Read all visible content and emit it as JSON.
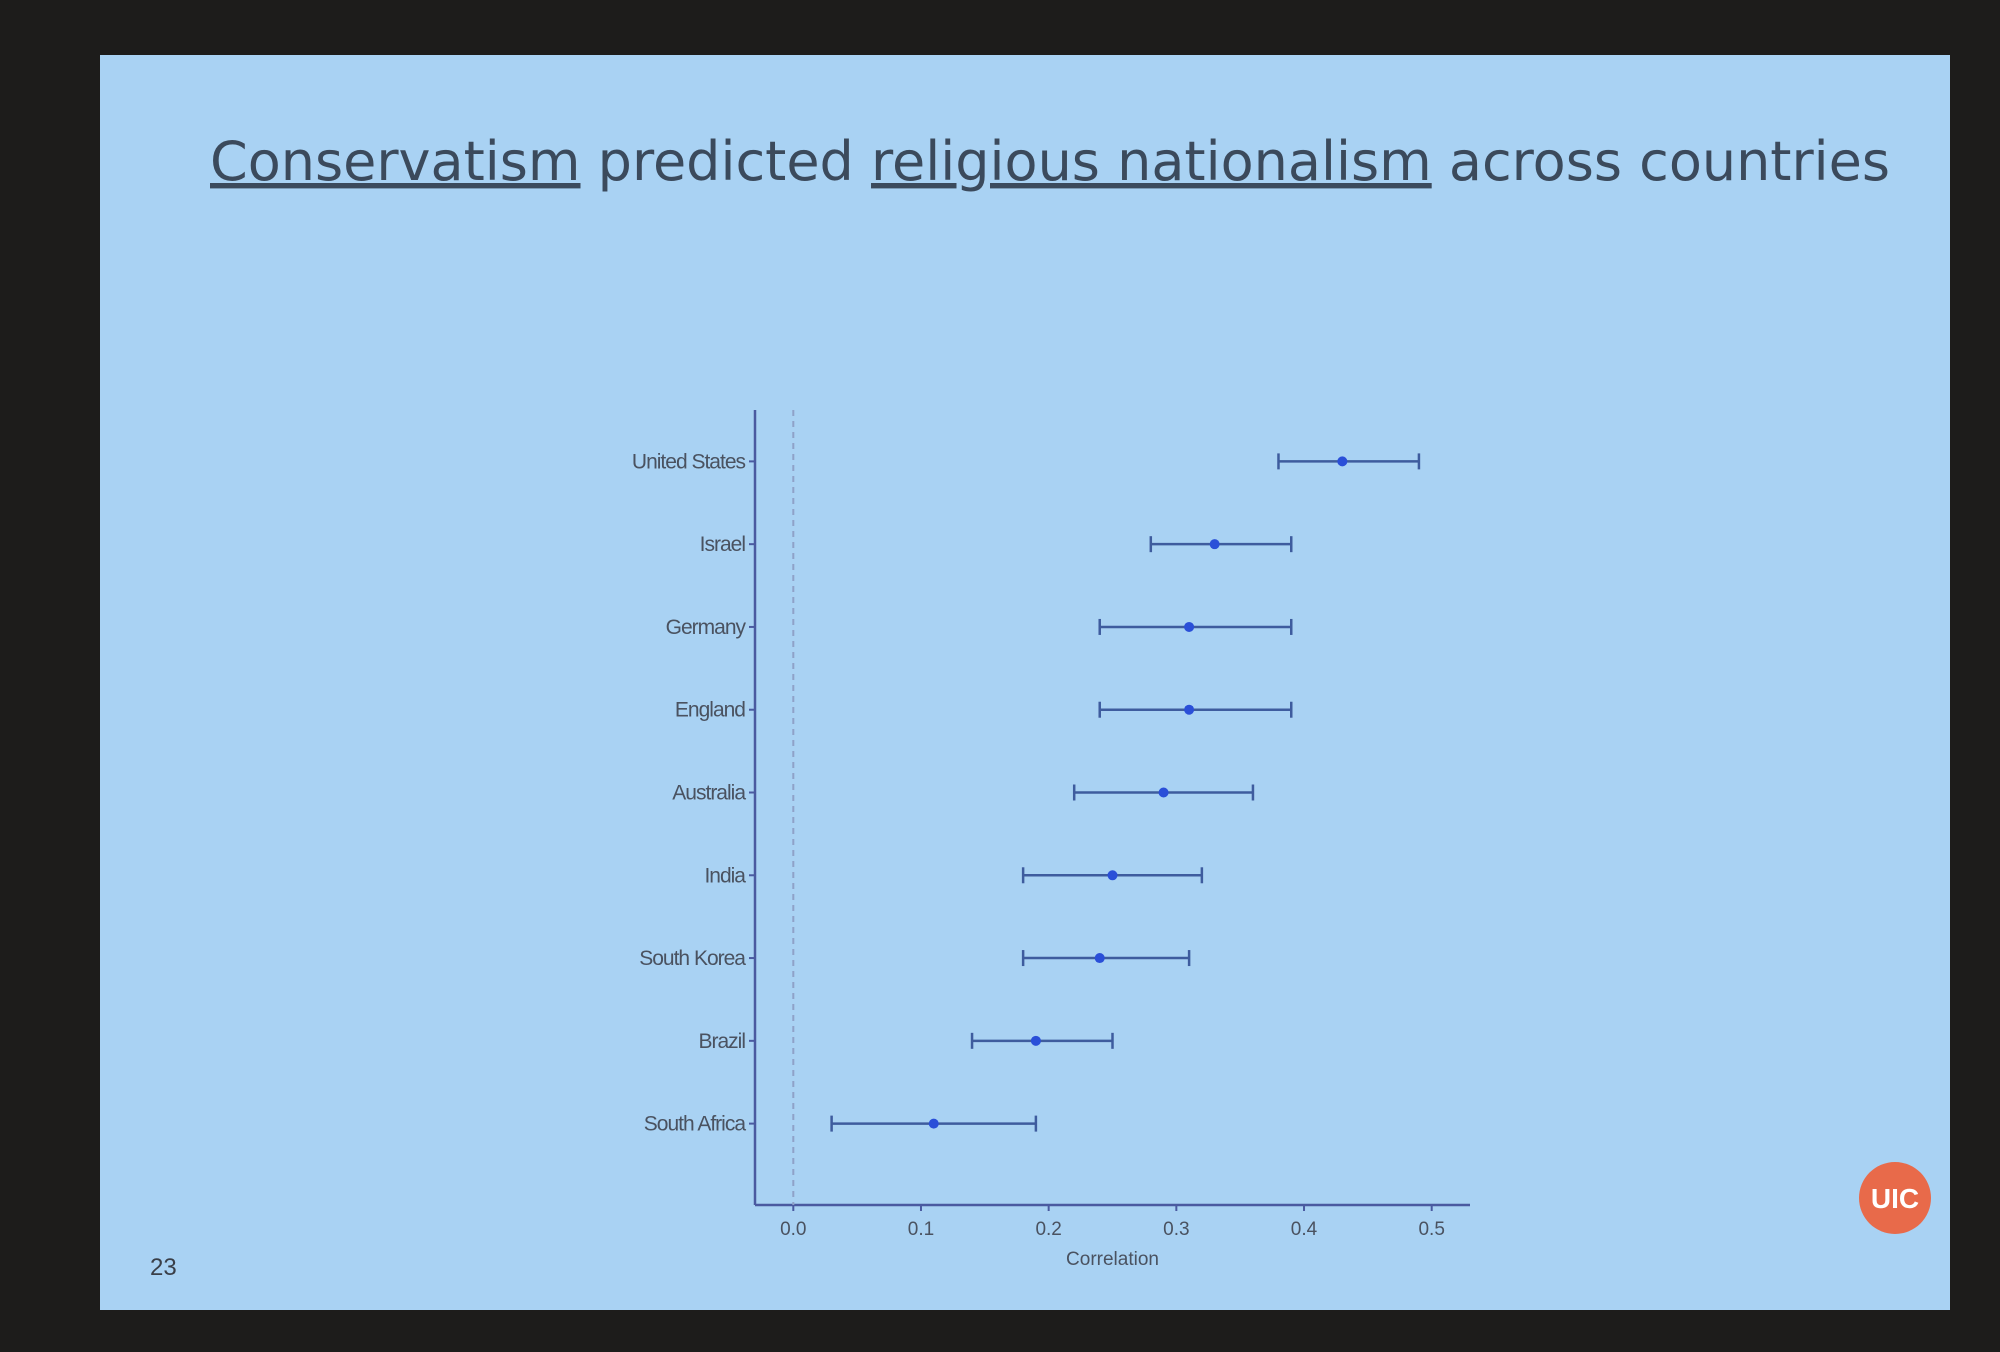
{
  "chart_data": {
    "type": "forest",
    "title_segments": [
      {
        "text": "Conservatism",
        "underline": true
      },
      {
        "text": "predicted",
        "underline": false
      },
      {
        "text": "religious nationalism",
        "underline": true
      },
      {
        "text": "across countries",
        "underline": false
      }
    ],
    "categories": [
      "United States",
      "Israel",
      "Germany",
      "England",
      "Australia",
      "India",
      "South Korea",
      "Brazil",
      "South Africa"
    ],
    "values": [
      0.43,
      0.33,
      0.31,
      0.31,
      0.29,
      0.25,
      0.24,
      0.19,
      0.11
    ],
    "ci_low": [
      0.38,
      0.28,
      0.24,
      0.24,
      0.22,
      0.18,
      0.18,
      0.14,
      0.03
    ],
    "ci_high": [
      0.49,
      0.39,
      0.39,
      0.39,
      0.36,
      0.32,
      0.31,
      0.25,
      0.19
    ],
    "point_color": "#2a4fd8",
    "bar_color": "#3e5c9e",
    "xlim": [
      -0.03,
      0.53
    ],
    "xticks": [
      {
        "value": 0,
        "label": "0.0"
      },
      0.1,
      0.2,
      0.3,
      0.4,
      0.5
    ],
    "xlabel": "Correlation",
    "reference_line": 0,
    "slide_number": "23",
    "logo": "UIC"
  }
}
